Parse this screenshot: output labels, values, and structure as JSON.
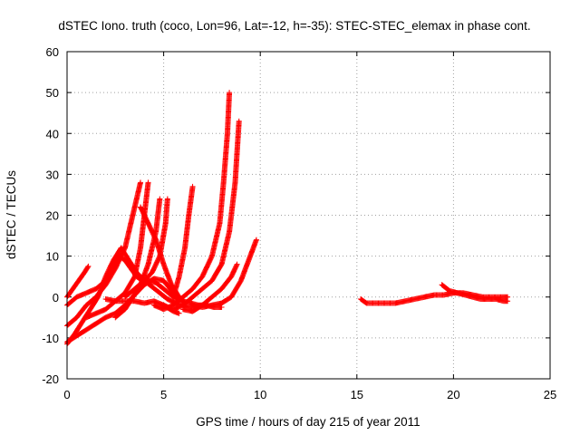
{
  "chart_data": {
    "type": "scatter",
    "title": "dSTEC Iono. truth (coco, Lon=96, Lat=-12, h=-35): STEC-STEC_elemax in phase cont.",
    "xlabel": "GPS time / hours of day 215 of year 2011",
    "ylabel": "dSTEC  / TECUs",
    "xlim": [
      0,
      25
    ],
    "ylim": [
      -20,
      60
    ],
    "xticks": [
      0,
      5,
      10,
      15,
      20,
      25
    ],
    "yticks": [
      -20,
      -10,
      0,
      10,
      20,
      30,
      40,
      50,
      60
    ],
    "grid": true,
    "marker": "plus",
    "color": "#ff0000",
    "series": [
      {
        "x": [
          0.0,
          0.3,
          0.6,
          0.9,
          1.1
        ],
        "y": [
          0.0,
          2.0,
          4.0,
          6.0,
          7.5
        ]
      },
      {
        "x": [
          0.0,
          0.5,
          1.0,
          1.5,
          2.0,
          2.4,
          2.7
        ],
        "y": [
          -2.0,
          0.0,
          1.0,
          2.0,
          4.0,
          7.0,
          10.0
        ]
      },
      {
        "x": [
          2.7,
          3.0,
          3.3,
          3.6,
          3.9,
          4.2
        ],
        "y": [
          10.0,
          9.0,
          7.0,
          5.0,
          4.0,
          3.5
        ]
      },
      {
        "x": [
          0.0,
          0.5,
          1.0,
          1.5,
          2.0,
          2.5,
          3.0,
          3.3,
          3.6,
          3.8
        ],
        "y": [
          -7.0,
          -5.0,
          -2.0,
          0.0,
          3.0,
          7.0,
          12.0,
          18.0,
          24.0,
          28.0
        ]
      },
      {
        "x": [
          0.0,
          0.4,
          0.8,
          1.2,
          1.6,
          2.0,
          2.4,
          2.8
        ],
        "y": [
          -11.5,
          -9.0,
          -6.0,
          -3.0,
          0.0,
          5.0,
          9.0,
          12.0
        ]
      },
      {
        "x": [
          2.8,
          3.2,
          3.6,
          4.0,
          4.4,
          4.8,
          5.2,
          5.6,
          6.0,
          6.3,
          6.6,
          7.0
        ],
        "y": [
          12.0,
          9.0,
          6.0,
          4.0,
          2.5,
          1.0,
          -0.5,
          -1.5,
          -2.0,
          -2.5,
          -2.5,
          -2.0
        ]
      },
      {
        "x": [
          0.0,
          1.0,
          2.0,
          2.5,
          3.0,
          3.5,
          4.0,
          4.5,
          5.0,
          5.5,
          6.0
        ],
        "y": [
          -11.0,
          -8.0,
          -5.0,
          -4.0,
          -2.0,
          0.5,
          3.0,
          4.5,
          4.0,
          1.0,
          -1.0
        ]
      },
      {
        "x": [
          2.0,
          2.5,
          3.0,
          3.5,
          4.0,
          4.5,
          5.0,
          5.5,
          5.8
        ],
        "y": [
          -0.5,
          -1.0,
          -1.0,
          -1.0,
          -1.5,
          -1.0,
          -2.0,
          -3.5,
          -4.0
        ]
      },
      {
        "x": [
          1.0,
          1.5,
          2.0,
          2.5,
          3.0,
          3.5,
          3.8,
          4.0,
          4.2
        ],
        "y": [
          -5.0,
          -4.0,
          -3.0,
          -1.0,
          1.0,
          5.0,
          12.0,
          20.0,
          28.0
        ]
      },
      {
        "x": [
          2.5,
          3.0,
          3.4,
          3.8,
          4.2,
          4.6,
          4.8
        ],
        "y": [
          -5.0,
          -3.0,
          0.0,
          3.0,
          8.0,
          16.0,
          24.0
        ]
      },
      {
        "x": [
          3.0,
          3.5,
          4.0,
          4.4,
          4.8,
          5.1,
          5.2
        ],
        "y": [
          0.0,
          2.0,
          4.0,
          6.0,
          10.0,
          18.0,
          24.0
        ]
      },
      {
        "x": [
          3.8,
          4.2,
          4.6,
          5.0,
          5.4,
          5.8,
          6.0
        ],
        "y": [
          22.0,
          18.0,
          14.0,
          8.0,
          3.0,
          0.0,
          -1.0
        ]
      },
      {
        "x": [
          4.2,
          4.6,
          5.0,
          5.5,
          6.0,
          6.4,
          6.8,
          7.2,
          7.6,
          8.0
        ],
        "y": [
          4.0,
          3.5,
          2.0,
          0.0,
          -1.0,
          -1.5,
          -2.0,
          -2.0,
          -2.5,
          -2.5
        ]
      },
      {
        "x": [
          5.5,
          5.8,
          6.1,
          6.3,
          6.5
        ],
        "y": [
          0.0,
          5.0,
          12.0,
          20.0,
          27.0
        ]
      },
      {
        "x": [
          4.5,
          5.0,
          5.5,
          6.0,
          6.5,
          7.0,
          7.5,
          7.9,
          8.1,
          8.3,
          8.4
        ],
        "y": [
          -2.0,
          -3.0,
          -2.0,
          0.0,
          2.0,
          5.0,
          10.0,
          18.0,
          28.0,
          40.0,
          50.0
        ]
      },
      {
        "x": [
          5.0,
          5.5,
          6.0,
          6.5,
          7.0,
          7.5,
          8.0,
          8.4,
          8.7,
          8.9
        ],
        "y": [
          -2.0,
          -3.0,
          -2.0,
          0.0,
          2.0,
          4.0,
          8.0,
          16.0,
          28.0,
          43.0
        ]
      },
      {
        "x": [
          6.0,
          6.5,
          7.0,
          7.5,
          8.0,
          8.5,
          8.8
        ],
        "y": [
          -3.0,
          -3.5,
          -2.0,
          0.0,
          2.0,
          5.0,
          8.0
        ]
      },
      {
        "x": [
          6.5,
          7.0,
          7.5,
          8.0,
          8.5,
          9.0,
          9.4,
          9.8
        ],
        "y": [
          -2.0,
          -2.5,
          -2.0,
          -1.5,
          0.0,
          4.0,
          9.0,
          14.0
        ]
      },
      {
        "x": [
          15.2,
          15.5,
          16.0,
          16.5,
          17.0,
          17.5,
          18.0,
          18.5,
          19.0,
          19.5,
          20.0,
          20.5,
          21.0,
          21.5,
          22.0,
          22.5,
          22.8
        ],
        "y": [
          -0.5,
          -1.5,
          -1.5,
          -1.5,
          -1.5,
          -1.0,
          -0.5,
          0.0,
          0.5,
          0.5,
          1.0,
          1.0,
          0.5,
          0.0,
          0.0,
          0.0,
          0.0
        ]
      },
      {
        "x": [
          19.4,
          19.8,
          20.2,
          20.6,
          21.0,
          21.4,
          21.8,
          22.2,
          22.6,
          22.8
        ],
        "y": [
          3.0,
          1.5,
          1.0,
          0.5,
          0.0,
          -0.5,
          -0.5,
          -0.5,
          -1.0,
          -1.0
        ]
      }
    ]
  }
}
